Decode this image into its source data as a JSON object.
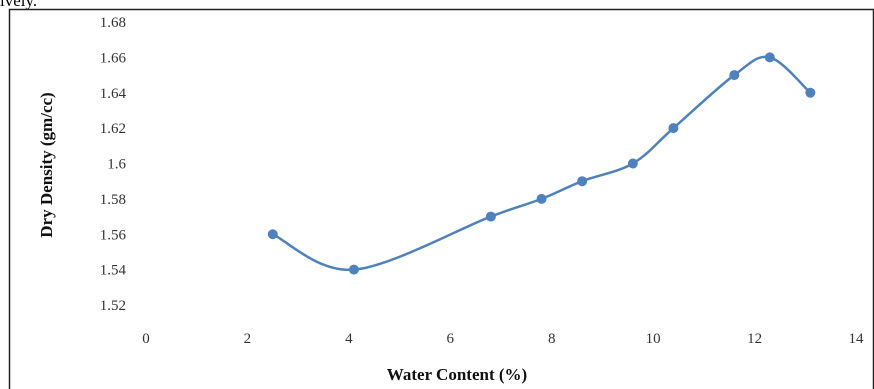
{
  "page_fragment": "ively.",
  "chart_data": {
    "type": "line",
    "title": "",
    "xlabel": "Water Content (%)",
    "ylabel": "Dry Density (gm/cc)",
    "xlim": [
      0,
      14
    ],
    "ylim": [
      1.52,
      1.68
    ],
    "x_ticks": [
      "0",
      "2",
      "4",
      "6",
      "8",
      "10",
      "12",
      "14"
    ],
    "y_ticks": [
      "1.52",
      "1.54",
      "1.56",
      "1.58",
      "1.6",
      "1.62",
      "1.64",
      "1.66",
      "1.68"
    ],
    "grid": false,
    "series": [
      {
        "color": "#4f81bd",
        "x": [
          2.5,
          4.1,
          6.8,
          7.8,
          8.6,
          9.6,
          10.4,
          11.6,
          12.3,
          13.1
        ],
        "y": [
          1.56,
          1.54,
          1.57,
          1.58,
          1.59,
          1.6,
          1.62,
          1.65,
          1.66,
          1.64
        ]
      }
    ]
  }
}
